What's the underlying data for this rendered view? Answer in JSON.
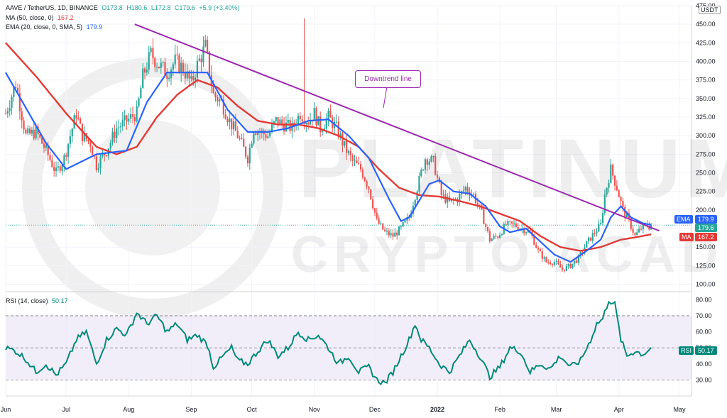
{
  "header": {
    "symbol": "AAVE / TetherUS, 1D, BINANCE",
    "open": "O173.8",
    "high": "H180.6",
    "low": "L172.8",
    "close": "C179.6",
    "change": "+5.9 (+3.40%)",
    "ma_label": "MA (50, close, 0)",
    "ma_value": "167.2",
    "ema_label": "EMA (20, close, 0, SMA, 5)",
    "ema_value": "179.9",
    "rsi_label": "RSI (14, close)",
    "rsi_value": "50.17"
  },
  "quote_currency": "USDT",
  "watermark": {
    "line1": "PLATINUM",
    "line2": "CRYPTO ACADEMY",
    "logo": "bitcoin-logo"
  },
  "colors": {
    "up": "#26a69a",
    "down": "#ef5350",
    "ema": "#2962ff",
    "ma": "#e53935",
    "trendline": "#9c27b0",
    "rsi": "#00897b",
    "rsi_band": "#ede7f6",
    "grid": "#f0f3fa"
  },
  "chart_data": [
    {
      "type": "candlestick",
      "title": "AAVE / TetherUS, 1D, BINANCE",
      "ylim": [
        90,
        475
      ],
      "y_ticks": [
        100,
        125,
        150,
        175,
        200,
        225,
        250,
        275,
        300,
        325,
        350,
        375,
        400,
        425,
        450,
        475
      ],
      "x_tick_labels": [
        "Jun",
        "Jul",
        "Aug",
        "Sep",
        "Oct",
        "Nov",
        "Dec",
        "2022",
        "Feb",
        "Mar",
        "Apr",
        "May"
      ],
      "x_tick_days": [
        0,
        30,
        61,
        92,
        122,
        153,
        183,
        214,
        245,
        273,
        304,
        334
      ],
      "start_date": "2021-06-01",
      "close_anchors": [
        [
          0,
          330
        ],
        [
          5,
          370
        ],
        [
          10,
          300
        ],
        [
          15,
          305
        ],
        [
          20,
          280
        ],
        [
          25,
          250
        ],
        [
          29,
          270
        ],
        [
          32,
          300
        ],
        [
          35,
          330
        ],
        [
          38,
          300
        ],
        [
          42,
          290
        ],
        [
          45,
          260
        ],
        [
          50,
          280
        ],
        [
          55,
          310
        ],
        [
          60,
          320
        ],
        [
          65,
          330
        ],
        [
          68,
          380
        ],
        [
          72,
          410
        ],
        [
          76,
          395
        ],
        [
          80,
          385
        ],
        [
          84,
          400
        ],
        [
          88,
          390
        ],
        [
          92,
          370
        ],
        [
          95,
          395
        ],
        [
          99,
          420
        ],
        [
          103,
          355
        ],
        [
          107,
          345
        ],
        [
          111,
          320
        ],
        [
          115,
          300
        ],
        [
          120,
          270
        ],
        [
          123,
          310
        ],
        [
          126,
          305
        ],
        [
          130,
          300
        ],
        [
          134,
          320
        ],
        [
          138,
          315
        ],
        [
          142,
          310
        ],
        [
          146,
          330
        ],
        [
          150,
          320
        ],
        [
          153,
          330
        ],
        [
          156,
          310
        ],
        [
          160,
          325
        ],
        [
          164,
          310
        ],
        [
          168,
          285
        ],
        [
          172,
          265
        ],
        [
          176,
          255
        ],
        [
          180,
          230
        ],
        [
          184,
          185
        ],
        [
          188,
          170
        ],
        [
          192,
          165
        ],
        [
          196,
          175
        ],
        [
          200,
          190
        ],
        [
          204,
          230
        ],
        [
          208,
          270
        ],
        [
          212,
          265
        ],
        [
          216,
          220
        ],
        [
          220,
          210
        ],
        [
          224,
          215
        ],
        [
          228,
          230
        ],
        [
          232,
          220
        ],
        [
          236,
          195
        ],
        [
          240,
          160
        ],
        [
          244,
          165
        ],
        [
          248,
          180
        ],
        [
          252,
          180
        ],
        [
          256,
          175
        ],
        [
          260,
          170
        ],
        [
          264,
          145
        ],
        [
          268,
          130
        ],
        [
          272,
          130
        ],
        [
          276,
          120
        ],
        [
          280,
          125
        ],
        [
          284,
          135
        ],
        [
          288,
          155
        ],
        [
          292,
          170
        ],
        [
          295,
          180
        ],
        [
          297,
          220
        ],
        [
          300,
          255
        ],
        [
          303,
          230
        ],
        [
          306,
          200
        ],
        [
          309,
          185
        ],
        [
          312,
          165
        ],
        [
          315,
          175
        ],
        [
          318,
          180
        ],
        [
          320,
          175
        ]
      ],
      "series": [
        {
          "name": "EMA (20, close, 0, SMA, 5)",
          "last": 179.9,
          "anchors": [
            [
              0,
              385
            ],
            [
              20,
              290
            ],
            [
              30,
              255
            ],
            [
              45,
              275
            ],
            [
              60,
              280
            ],
            [
              70,
              345
            ],
            [
              80,
              385
            ],
            [
              92,
              385
            ],
            [
              100,
              385
            ],
            [
              110,
              335
            ],
            [
              120,
              305
            ],
            [
              130,
              305
            ],
            [
              140,
              310
            ],
            [
              150,
              320
            ],
            [
              160,
              322
            ],
            [
              170,
              300
            ],
            [
              180,
              270
            ],
            [
              190,
              215
            ],
            [
              196,
              185
            ],
            [
              200,
              190
            ],
            [
              210,
              235
            ],
            [
              215,
              240
            ],
            [
              222,
              225
            ],
            [
              230,
              222
            ],
            [
              238,
              205
            ],
            [
              245,
              178
            ],
            [
              250,
              170
            ],
            [
              258,
              175
            ],
            [
              264,
              160
            ],
            [
              272,
              140
            ],
            [
              280,
              130
            ],
            [
              288,
              145
            ],
            [
              295,
              160
            ],
            [
              300,
              190
            ],
            [
              305,
              205
            ],
            [
              310,
              190
            ],
            [
              316,
              182
            ],
            [
              320,
              179.9
            ]
          ]
        },
        {
          "name": "MA (50, close, 0)",
          "last": 167.2,
          "anchors": [
            [
              0,
              425
            ],
            [
              15,
              380
            ],
            [
              30,
              330
            ],
            [
              45,
              285
            ],
            [
              55,
              275
            ],
            [
              65,
              285
            ],
            [
              75,
              325
            ],
            [
              85,
              355
            ],
            [
              95,
              375
            ],
            [
              105,
              365
            ],
            [
              115,
              340
            ],
            [
              125,
              320
            ],
            [
              135,
              315
            ],
            [
              145,
              315
            ],
            [
              155,
              310
            ],
            [
              165,
              300
            ],
            [
              175,
              285
            ],
            [
              185,
              255
            ],
            [
              195,
              230
            ],
            [
              205,
              220
            ],
            [
              215,
              218
            ],
            [
              225,
              212
            ],
            [
              235,
              205
            ],
            [
              245,
              195
            ],
            [
              255,
              185
            ],
            [
              265,
              165
            ],
            [
              275,
              150
            ],
            [
              285,
              145
            ],
            [
              295,
              150
            ],
            [
              305,
              160
            ],
            [
              312,
              163
            ],
            [
              320,
              167.2
            ]
          ]
        }
      ],
      "trendline": {
        "name": "Downtrend line",
        "from": [
          64,
          450
        ],
        "to": [
          324,
          172
        ]
      },
      "last_close": 179.6
    },
    {
      "type": "line",
      "title": "RSI (14, close)",
      "ylim": [
        20,
        85
      ],
      "y_ticks": [
        30,
        40,
        50,
        60,
        70,
        80
      ],
      "band": [
        30,
        70
      ],
      "midline": 50,
      "anchors": [
        [
          0,
          50
        ],
        [
          5,
          48
        ],
        [
          10,
          43
        ],
        [
          15,
          35
        ],
        [
          20,
          40
        ],
        [
          25,
          33
        ],
        [
          30,
          40
        ],
        [
          35,
          55
        ],
        [
          40,
          60
        ],
        [
          45,
          40
        ],
        [
          50,
          55
        ],
        [
          55,
          62
        ],
        [
          60,
          58
        ],
        [
          65,
          72
        ],
        [
          70,
          65
        ],
        [
          75,
          70
        ],
        [
          80,
          60
        ],
        [
          85,
          65
        ],
        [
          90,
          55
        ],
        [
          95,
          58
        ],
        [
          100,
          52
        ],
        [
          103,
          38
        ],
        [
          108,
          45
        ],
        [
          112,
          50
        ],
        [
          115,
          42
        ],
        [
          120,
          40
        ],
        [
          125,
          48
        ],
        [
          130,
          55
        ],
        [
          135,
          45
        ],
        [
          140,
          50
        ],
        [
          145,
          60
        ],
        [
          150,
          55
        ],
        [
          155,
          58
        ],
        [
          160,
          50
        ],
        [
          165,
          40
        ],
        [
          170,
          45
        ],
        [
          175,
          35
        ],
        [
          180,
          38
        ],
        [
          184,
          30
        ],
        [
          188,
          28
        ],
        [
          192,
          35
        ],
        [
          196,
          45
        ],
        [
          200,
          55
        ],
        [
          203,
          65
        ],
        [
          206,
          55
        ],
        [
          210,
          50
        ],
        [
          215,
          40
        ],
        [
          220,
          35
        ],
        [
          225,
          45
        ],
        [
          230,
          55
        ],
        [
          235,
          45
        ],
        [
          240,
          32
        ],
        [
          245,
          38
        ],
        [
          250,
          50
        ],
        [
          255,
          48
        ],
        [
          260,
          35
        ],
        [
          265,
          40
        ],
        [
          270,
          37
        ],
        [
          275,
          45
        ],
        [
          280,
          38
        ],
        [
          285,
          42
        ],
        [
          290,
          55
        ],
        [
          293,
          65
        ],
        [
          296,
          68
        ],
        [
          299,
          80
        ],
        [
          302,
          77
        ],
        [
          305,
          55
        ],
        [
          308,
          45
        ],
        [
          312,
          48
        ],
        [
          316,
          46
        ],
        [
          320,
          50.17
        ]
      ],
      "last": 50.17
    }
  ]
}
